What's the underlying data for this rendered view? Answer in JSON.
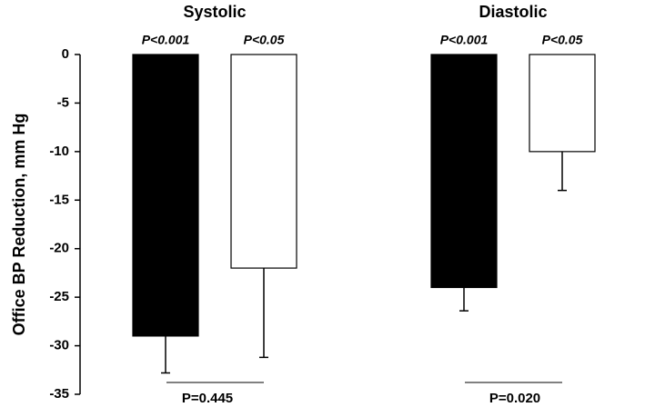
{
  "chart_data": {
    "type": "bar",
    "y_label": "Office BP Reduction, mm Hg",
    "categories": [
      "Systolic",
      "Diastolic"
    ],
    "series": [
      {
        "color": "#000000",
        "values": [
          -29,
          -24
        ],
        "errors": [
          3.8,
          2.4
        ]
      },
      {
        "color": "#ffffff",
        "values": [
          -22,
          -10
        ],
        "errors": [
          9.2,
          4
        ]
      }
    ],
    "significance": [
      [
        "P<0.001",
        "P<0.05"
      ],
      [
        "P<0.001",
        "P<0.05"
      ]
    ],
    "comparisons": [
      "P=0.445",
      "P=0.020"
    ],
    "ylim": [
      -35,
      0
    ],
    "yticks": [
      -35,
      -30,
      -25,
      -20,
      -15,
      -10,
      -5,
      0
    ],
    "grid": false
  }
}
